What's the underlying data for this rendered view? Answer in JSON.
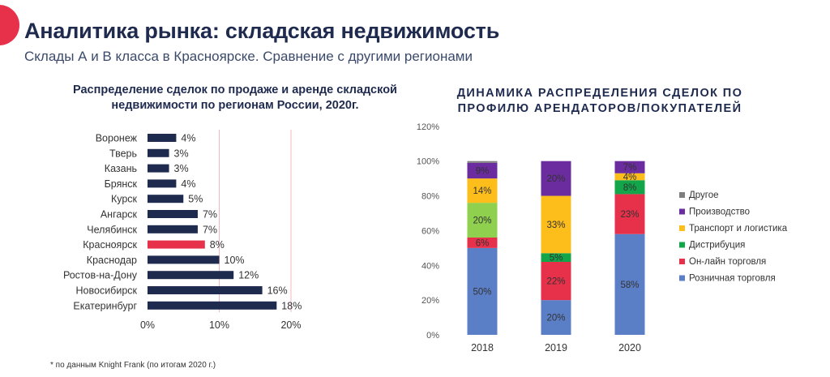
{
  "header": {
    "title": "Аналитика рынка: складская недвижимость",
    "subtitle": "Склады А и В класса в Красноярске. Сравнение с другими регионами"
  },
  "footnote": "* по данным Knight Frank (по итогам 2020 г.)",
  "colors": {
    "accent": "#e7304a",
    "navy": "#1f2a4f",
    "bar_default": "#1f2a4f",
    "bar_highlight": "#e7304a",
    "vline": "#f0b8c0"
  },
  "chart_data": [
    {
      "type": "bar",
      "orientation": "horizontal",
      "title": "Распределение сделок по продаже и аренде складской недвижимости по регионам России, 2020г.",
      "categories": [
        "Воронеж",
        "Тверь",
        "Казань",
        "Брянск",
        "Курск",
        "Ангарск",
        "Челябинск",
        "Красноярск",
        "Краснодар",
        "Ростов-на-Дону",
        "Новосибирск",
        "Екатеринбург"
      ],
      "values": [
        4,
        3,
        3,
        4,
        5,
        7,
        7,
        8,
        10,
        12,
        16,
        18
      ],
      "value_labels": [
        "4%",
        "3%",
        "3%",
        "4%",
        "5%",
        "7%",
        "7%",
        "8%",
        "10%",
        "12%",
        "16%",
        "18%"
      ],
      "highlight": "Красноярск",
      "x_ticks": [
        "0%",
        "10%",
        "20%"
      ],
      "xlim": [
        0,
        20
      ],
      "grid": false
    },
    {
      "type": "bar",
      "stacked": true,
      "title": "ДИНАМИКА РАСПРЕДЕЛЕНИЯ СДЕЛОК ПО ПРОФИЛЮ АРЕНДАТОРОВ/ПОКУПАТЕЛЕЙ",
      "categories": [
        "2018",
        "2019",
        "2020"
      ],
      "y_ticks": [
        "0%",
        "20%",
        "40%",
        "60%",
        "80%",
        "100%",
        "120%"
      ],
      "ylim": [
        0,
        120
      ],
      "grid": false,
      "legend_position": "right",
      "series": [
        {
          "name": "Розничная торговля",
          "color": "#5b7fc7",
          "values": [
            50,
            20,
            58
          ],
          "labels": [
            "50%",
            "20%",
            "58%"
          ]
        },
        {
          "name": "Он-лайн торговля",
          "color": "#e7304a",
          "values": [
            6,
            22,
            23
          ],
          "labels": [
            "6%",
            "22%",
            "23%"
          ]
        },
        {
          "name": "Дистрибуция",
          "color": "#12a54a",
          "values": [
            0,
            5,
            8
          ],
          "labels": [
            "",
            "5%",
            "8%"
          ]
        },
        {
          "name": "Транспорт и логистика",
          "color": "#fdbd1a",
          "values": [
            14,
            33,
            4
          ],
          "labels": [
            "14%",
            "33%",
            "4%"
          ]
        },
        {
          "name": "Производство",
          "color": "#6a2c9e",
          "values": [
            9,
            20,
            7
          ],
          "labels": [
            "9%",
            "20%",
            "7%"
          ]
        },
        {
          "name": "Другое",
          "color": "#7f7f7f",
          "values": [
            1,
            0,
            0
          ],
          "labels": [
            "",
            "",
            ""
          ]
        }
      ],
      "extra_segments": [
        {
          "category": "2018",
          "after_series": "Он-лайн торговля",
          "color": "#8fd14f",
          "value": 20,
          "label": "20%"
        }
      ]
    }
  ]
}
